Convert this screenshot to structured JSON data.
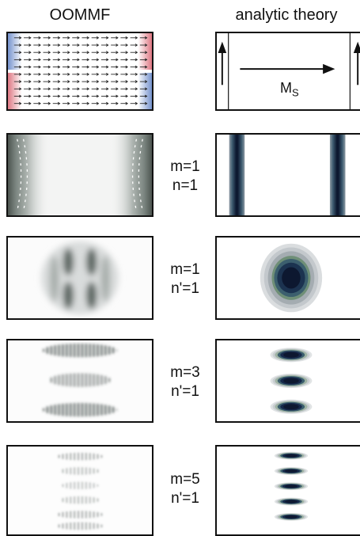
{
  "columns": {
    "left_title": "OOMMF",
    "right_title": "analytic theory"
  },
  "magnetization_label": "M",
  "magnetization_subscript": "S",
  "modes": [
    {
      "m_label": "m=1",
      "n_label": "n=1"
    },
    {
      "m_label": "m=1",
      "n_label": "n'=1"
    },
    {
      "m_label": "m=3",
      "n_label": "n'=1"
    },
    {
      "m_label": "m=5",
      "n_label": "n'=1"
    }
  ],
  "colors": {
    "frame": "#111111",
    "spin_up": "#d9606e",
    "spin_down": "#5d7fc4",
    "mode_dark": "#0d1830",
    "mode_ring_green": "#5e8a64",
    "mode_ring_grey": "#9aa1a8"
  }
}
